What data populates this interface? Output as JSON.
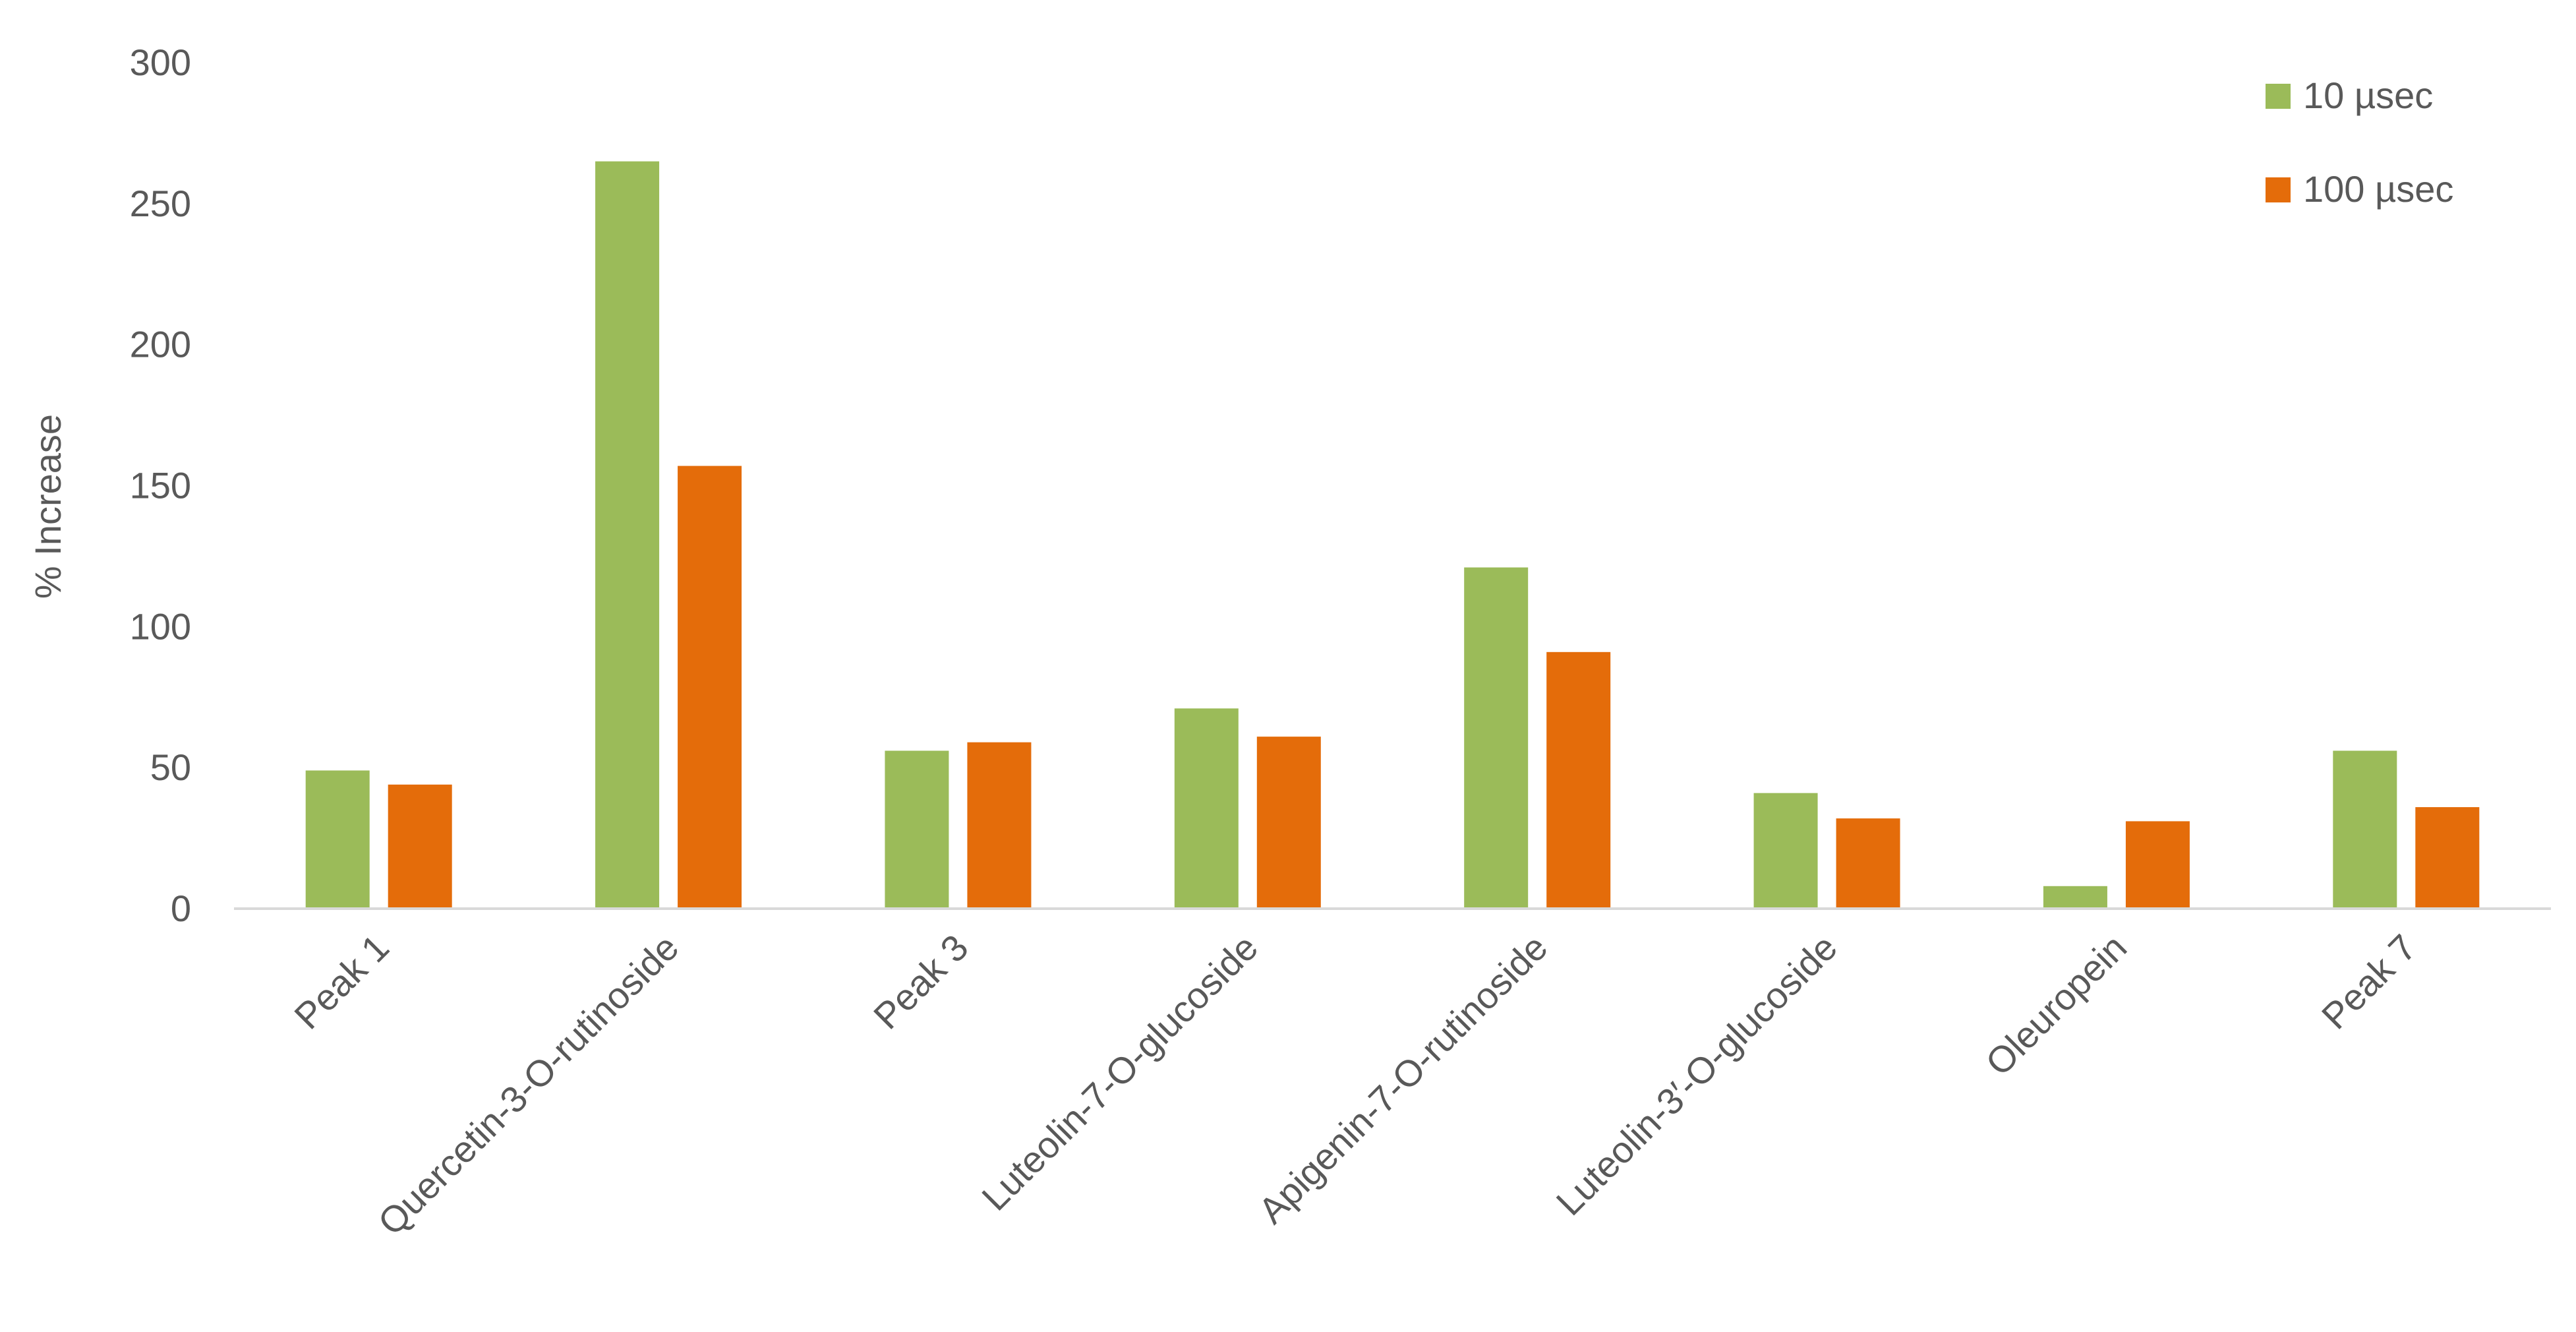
{
  "chart_data": {
    "type": "bar",
    "title": "",
    "xlabel": "",
    "ylabel": "% Increase",
    "ylim": [
      0,
      300
    ],
    "yticks": [
      0,
      50,
      100,
      150,
      200,
      250,
      300
    ],
    "grid": false,
    "legend_position": "top-right",
    "categories": [
      "Peak 1",
      "Quercetin-3-O-rutinoside",
      "Peak 3",
      "Luteolin-7-O-glucoside",
      "Apigenin-7-O-rutinoside",
      "Luteolin-3′-O-glucoside",
      "Oleuropein",
      "Peak 7"
    ],
    "series": [
      {
        "name": "10 µsec",
        "color": "#9BBB59",
        "values": [
          49,
          265,
          56,
          71,
          121,
          41,
          8,
          56
        ]
      },
      {
        "name": "100 µsec",
        "color": "#E46C0A",
        "values": [
          44,
          157,
          59,
          61,
          91,
          32,
          31,
          36
        ]
      }
    ]
  }
}
